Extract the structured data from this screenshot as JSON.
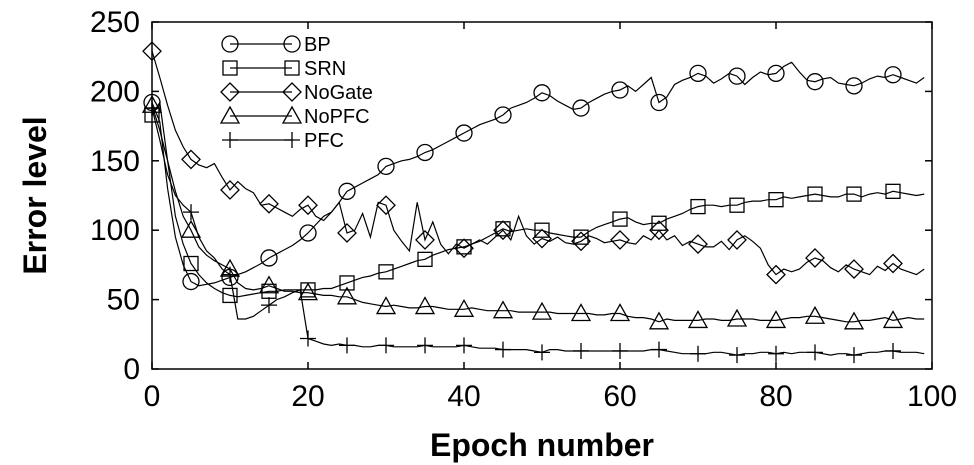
{
  "chart_data": {
    "type": "line",
    "xlabel": "Epoch number",
    "ylabel": "Error level",
    "xlim": [
      0,
      100
    ],
    "ylim": [
      0,
      250
    ],
    "xticks": [
      0,
      20,
      40,
      60,
      80,
      100
    ],
    "yticks": [
      0,
      50,
      100,
      150,
      200,
      250
    ],
    "grid": false,
    "legend_position": "top-left",
    "series": [
      {
        "name": "BP",
        "marker": "circle",
        "x": [
          0,
          1,
          2,
          3,
          4,
          5,
          6,
          7,
          8,
          9,
          10,
          11,
          12,
          13,
          14,
          15,
          16,
          17,
          18,
          19,
          20,
          21,
          22,
          23,
          24,
          25,
          26,
          27,
          28,
          29,
          30,
          31,
          32,
          33,
          34,
          35,
          36,
          37,
          38,
          39,
          40,
          41,
          42,
          43,
          44,
          45,
          46,
          47,
          48,
          49,
          50,
          51,
          52,
          53,
          54,
          55,
          56,
          57,
          58,
          59,
          60,
          61,
          62,
          63,
          64,
          65,
          66,
          67,
          68,
          69,
          70,
          71,
          72,
          73,
          74,
          75,
          76,
          77,
          78,
          79,
          80,
          81,
          82,
          83,
          84,
          85,
          86,
          87,
          88,
          89,
          90,
          91,
          92,
          93,
          94,
          95,
          96,
          97,
          98,
          99
        ],
        "values": [
          192,
          178,
          130,
          95,
          75,
          63,
          60,
          61,
          62,
          64,
          66,
          68,
          70,
          73,
          76,
          80,
          83,
          86,
          89,
          93,
          98,
          104,
          110,
          113,
          120,
          128,
          131,
          134,
          137,
          140,
          146,
          148,
          150,
          151,
          153,
          156,
          158,
          161,
          164,
          167,
          170,
          173,
          176,
          178,
          180,
          183,
          188,
          190,
          192,
          195,
          199,
          197,
          193,
          190,
          187,
          188,
          192,
          195,
          198,
          200,
          201,
          204,
          200,
          205,
          210,
          192,
          196,
          205,
          208,
          210,
          213,
          211,
          206,
          209,
          213,
          211,
          205,
          210,
          214,
          212,
          213,
          218,
          221,
          214,
          208,
          207,
          209,
          210,
          206,
          205,
          204,
          206,
          209,
          211,
          210,
          212,
          210,
          208,
          206,
          210
        ],
        "marker_x": [
          0,
          5,
          10,
          15,
          20,
          25,
          30,
          35,
          40,
          45,
          50,
          55,
          60,
          65,
          70,
          75,
          80,
          85,
          90,
          95
        ]
      },
      {
        "name": "SRN",
        "marker": "square",
        "x": [
          0,
          1,
          2,
          3,
          4,
          5,
          6,
          7,
          8,
          9,
          10,
          11,
          12,
          13,
          14,
          15,
          16,
          17,
          18,
          19,
          20,
          21,
          22,
          23,
          24,
          25,
          26,
          27,
          28,
          29,
          30,
          31,
          32,
          33,
          34,
          35,
          36,
          37,
          38,
          39,
          40,
          41,
          42,
          43,
          44,
          45,
          46,
          47,
          48,
          49,
          50,
          51,
          52,
          53,
          54,
          55,
          56,
          57,
          58,
          59,
          60,
          61,
          62,
          63,
          64,
          65,
          66,
          67,
          68,
          69,
          70,
          71,
          72,
          73,
          74,
          75,
          76,
          77,
          78,
          79,
          80,
          81,
          82,
          83,
          84,
          85,
          86,
          87,
          88,
          89,
          90,
          91,
          92,
          93,
          94,
          95,
          96,
          97,
          98,
          99
        ],
        "values": [
          183,
          192,
          150,
          110,
          90,
          76,
          68,
          62,
          58,
          55,
          53,
          52,
          53,
          54,
          55,
          56,
          56,
          57,
          57,
          57,
          57,
          57,
          58,
          58,
          60,
          62,
          64,
          66,
          67,
          69,
          70,
          72,
          74,
          76,
          78,
          79,
          82,
          84,
          86,
          87,
          88,
          90,
          92,
          95,
          98,
          101,
          99,
          100,
          101,
          100,
          100,
          98,
          97,
          96,
          95,
          95,
          99,
          102,
          104,
          106,
          108,
          109,
          106,
          104,
          105,
          105,
          108,
          110,
          112,
          115,
          117,
          118,
          118,
          117,
          118,
          118,
          120,
          121,
          121,
          122,
          122,
          124,
          123,
          124,
          125,
          126,
          125,
          124,
          124,
          126,
          126,
          124,
          126,
          127,
          126,
          128,
          127,
          126,
          125,
          126
        ],
        "marker_x": [
          0,
          5,
          10,
          15,
          20,
          25,
          30,
          35,
          40,
          45,
          50,
          55,
          60,
          65,
          70,
          75,
          80,
          85,
          90,
          95
        ]
      },
      {
        "name": "NoGate",
        "marker": "diamond",
        "x": [
          0,
          1,
          2,
          3,
          4,
          5,
          6,
          7,
          8,
          9,
          10,
          11,
          12,
          13,
          14,
          15,
          16,
          17,
          18,
          19,
          20,
          21,
          22,
          23,
          24,
          25,
          26,
          27,
          28,
          29,
          30,
          31,
          32,
          33,
          34,
          35,
          36,
          37,
          38,
          39,
          40,
          41,
          42,
          43,
          44,
          45,
          46,
          47,
          48,
          49,
          50,
          51,
          52,
          53,
          54,
          55,
          56,
          57,
          58,
          59,
          60,
          61,
          62,
          63,
          64,
          65,
          66,
          67,
          68,
          69,
          70,
          71,
          72,
          73,
          74,
          75,
          76,
          77,
          78,
          79,
          80,
          81,
          82,
          83,
          84,
          85,
          86,
          87,
          88,
          89,
          90,
          91,
          92,
          93,
          94,
          95,
          96,
          97,
          98,
          99
        ],
        "values": [
          229,
          210,
          190,
          172,
          160,
          151,
          147,
          145,
          148,
          138,
          129,
          135,
          130,
          127,
          118,
          119,
          116,
          113,
          110,
          115,
          118,
          110,
          107,
          113,
          120,
          98,
          100,
          112,
          95,
          120,
          118,
          100,
          92,
          85,
          120,
          93,
          106,
          90,
          83,
          90,
          87,
          90,
          93,
          90,
          95,
          100,
          93,
          110,
          96,
          90,
          94,
          92,
          95,
          91,
          90,
          92,
          96,
          94,
          91,
          92,
          93,
          91,
          90,
          96,
          93,
          100,
          93,
          96,
          89,
          92,
          90,
          88,
          88,
          92,
          86,
          93,
          96,
          92,
          87,
          75,
          68,
          72,
          70,
          72,
          77,
          80,
          78,
          73,
          70,
          75,
          72,
          70,
          68,
          74,
          71,
          76,
          72,
          70,
          68,
          72
        ],
        "marker_x": [
          0,
          5,
          10,
          15,
          20,
          25,
          30,
          35,
          40,
          45,
          50,
          55,
          60,
          65,
          70,
          75,
          80,
          85,
          90,
          95
        ]
      },
      {
        "name": "NoPFC",
        "marker": "triangle",
        "x": [
          0,
          1,
          2,
          3,
          4,
          5,
          6,
          7,
          8,
          9,
          10,
          11,
          12,
          13,
          14,
          15,
          16,
          17,
          18,
          19,
          20,
          21,
          22,
          23,
          24,
          25,
          26,
          27,
          28,
          29,
          30,
          31,
          32,
          33,
          34,
          35,
          36,
          37,
          38,
          39,
          40,
          41,
          42,
          43,
          44,
          45,
          46,
          47,
          48,
          49,
          50,
          51,
          52,
          53,
          54,
          55,
          56,
          57,
          58,
          59,
          60,
          61,
          62,
          63,
          64,
          65,
          66,
          67,
          68,
          69,
          70,
          71,
          72,
          73,
          74,
          75,
          76,
          77,
          78,
          79,
          80,
          81,
          82,
          83,
          84,
          85,
          86,
          87,
          88,
          89,
          90,
          91,
          92,
          93,
          94,
          95,
          96,
          97,
          98,
          99
        ],
        "values": [
          190,
          172,
          150,
          128,
          110,
          100,
          88,
          82,
          78,
          75,
          72,
          62,
          58,
          57,
          58,
          60,
          58,
          56,
          56,
          55,
          55,
          54,
          53,
          53,
          52,
          52,
          50,
          48,
          47,
          46,
          45,
          46,
          45,
          44,
          44,
          45,
          45,
          44,
          43,
          43,
          43,
          44,
          43,
          42,
          42,
          42,
          42,
          41,
          41,
          41,
          41,
          41,
          40,
          40,
          40,
          40,
          40,
          39,
          39,
          40,
          40,
          38,
          37,
          37,
          36,
          34,
          36,
          35,
          35,
          35,
          35,
          36,
          36,
          35,
          35,
          36,
          36,
          36,
          35,
          35,
          35,
          36,
          37,
          37,
          38,
          38,
          37,
          36,
          35,
          34,
          34,
          35,
          35,
          36,
          37,
          35,
          36,
          37,
          36,
          36
        ],
        "marker_x": [
          0,
          5,
          10,
          15,
          20,
          25,
          30,
          35,
          40,
          45,
          50,
          55,
          60,
          65,
          70,
          75,
          80,
          85,
          90,
          95
        ]
      },
      {
        "name": "PFC",
        "marker": "plus",
        "x": [
          0,
          1,
          2,
          3,
          4,
          5,
          6,
          7,
          8,
          9,
          10,
          11,
          12,
          13,
          14,
          15,
          16,
          17,
          18,
          19,
          20,
          21,
          22,
          23,
          24,
          25,
          26,
          27,
          28,
          29,
          30,
          31,
          32,
          33,
          34,
          35,
          36,
          37,
          38,
          39,
          40,
          41,
          42,
          43,
          44,
          45,
          46,
          47,
          48,
          49,
          50,
          51,
          52,
          53,
          54,
          55,
          56,
          57,
          58,
          59,
          60,
          61,
          62,
          63,
          64,
          65,
          66,
          67,
          68,
          69,
          70,
          71,
          72,
          73,
          74,
          75,
          76,
          77,
          78,
          79,
          80,
          81,
          82,
          83,
          84,
          85,
          86,
          87,
          88,
          89,
          90,
          91,
          92,
          93,
          94,
          95,
          96,
          97,
          98,
          99
        ],
        "values": [
          188,
          165,
          140,
          125,
          118,
          113,
          95,
          85,
          80,
          72,
          68,
          36,
          36,
          38,
          42,
          46,
          50,
          52,
          55,
          57,
          22,
          20,
          18,
          17,
          18,
          17,
          17,
          16,
          16,
          17,
          17,
          16,
          16,
          16,
          16,
          17,
          16,
          16,
          16,
          16,
          17,
          16,
          15,
          15,
          15,
          14,
          14,
          14,
          14,
          13,
          12,
          14,
          14,
          13,
          13,
          13,
          13,
          13,
          13,
          13,
          13,
          13,
          13,
          13,
          14,
          14,
          13,
          12,
          11,
          11,
          11,
          11,
          12,
          12,
          11,
          10,
          11,
          11,
          12,
          12,
          11,
          12,
          11,
          12,
          12,
          12,
          11,
          10,
          11,
          11,
          10,
          11,
          12,
          12,
          13,
          13,
          12,
          12,
          12,
          11
        ],
        "marker_x": [
          0,
          5,
          10,
          15,
          20,
          25,
          30,
          35,
          40,
          45,
          50,
          55,
          60,
          65,
          70,
          75,
          80,
          85,
          90,
          95
        ]
      }
    ]
  }
}
